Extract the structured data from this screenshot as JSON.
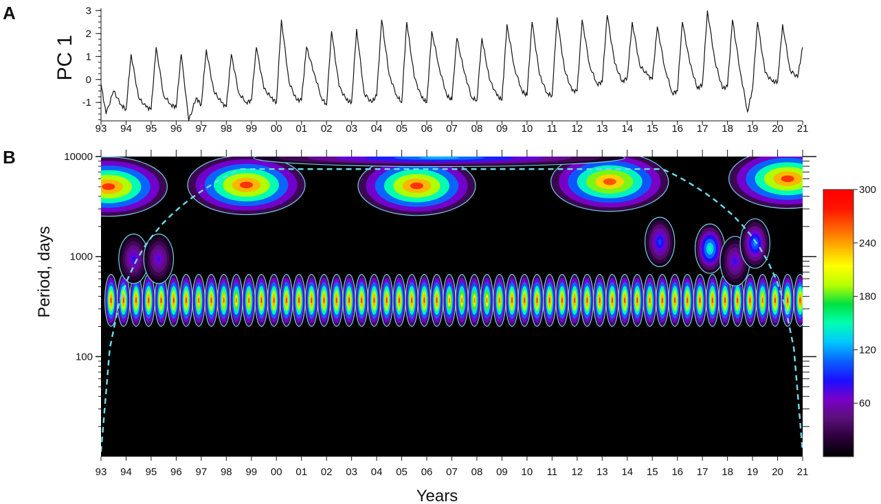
{
  "panel_a": {
    "label": "A",
    "ylabel": "PC 1",
    "yticks": [
      "3",
      "2",
      "1",
      "0",
      "-1"
    ]
  },
  "panel_b": {
    "label": "B",
    "ylabel": "Period, days",
    "xlabel": "Years",
    "yticks": [
      "10000",
      "1000",
      "100"
    ]
  },
  "year_labels": [
    "93",
    "94",
    "95",
    "96",
    "97",
    "98",
    "99",
    "00",
    "01",
    "02",
    "03",
    "04",
    "05",
    "06",
    "07",
    "08",
    "09",
    "10",
    "11",
    "12",
    "13",
    "14",
    "15",
    "16",
    "17",
    "18",
    "19",
    "20",
    "21"
  ],
  "colorbar": {
    "ticks": [
      "300",
      "240",
      "180",
      "120",
      "60"
    ],
    "colors": [
      "#000000",
      "#2a0038",
      "#5a0f78",
      "#7a00c8",
      "#1a10ff",
      "#0a60ff",
      "#00c8ff",
      "#00ffb0",
      "#00e040",
      "#b8ff00",
      "#ffff00",
      "#ffb000",
      "#ff6000",
      "#ff1400",
      "#ff0000"
    ]
  },
  "colors": {
    "contour": "#6fd8e6",
    "line": "#111111",
    "background": "#000000"
  },
  "chart_data": [
    {
      "type": "line",
      "title": "",
      "xlabel": "",
      "ylabel": "PC 1",
      "xlim": [
        1993,
        2021
      ],
      "ylim": [
        -1.8,
        3.1
      ],
      "series": [
        {
          "x": [
            1993.0,
            1993.2,
            1993.5,
            1993.8,
            1994.0,
            1994.2,
            1994.5,
            1994.8,
            1995.0,
            1995.2,
            1995.5,
            1995.8,
            1996.0,
            1996.2,
            1996.5,
            1996.8,
            1997.0,
            1997.2,
            1997.5,
            1997.8,
            1998.0,
            1998.2,
            1998.5,
            1998.8,
            1999.0,
            1999.2,
            1999.5,
            1999.8,
            2000.0,
            2000.2,
            2000.5,
            2000.8,
            2001.0,
            2001.2,
            2001.5,
            2001.8,
            2002.0,
            2002.2,
            2002.5,
            2002.8,
            2003.0,
            2003.2,
            2003.5,
            2003.8,
            2004.0,
            2004.2,
            2004.5,
            2004.8,
            2005.0,
            2005.2,
            2005.5,
            2005.8,
            2006.0,
            2006.2,
            2006.5,
            2006.8,
            2007.0,
            2007.2,
            2007.5,
            2007.8,
            2008.0,
            2008.2,
            2008.5,
            2008.8,
            2009.0,
            2009.2,
            2009.5,
            2009.8,
            2010.0,
            2010.2,
            2010.5,
            2010.8,
            2011.0,
            2011.2,
            2011.5,
            2011.8,
            2012.0,
            2012.2,
            2012.5,
            2012.8,
            2013.0,
            2013.2,
            2013.5,
            2013.8,
            2014.0,
            2014.2,
            2014.5,
            2014.8,
            2015.0,
            2015.2,
            2015.5,
            2015.8,
            2016.0,
            2016.2,
            2016.5,
            2016.8,
            2017.0,
            2017.2,
            2017.5,
            2017.8,
            2018.0,
            2018.2,
            2018.5,
            2018.8,
            2019.0,
            2019.2,
            2019.5,
            2019.8,
            2020.0,
            2020.2,
            2020.5,
            2020.8,
            2021.0
          ],
          "values": [
            -0.2,
            -1.5,
            -0.5,
            -1.1,
            -1.3,
            1.1,
            -0.8,
            -1.2,
            -1.3,
            1.4,
            -0.7,
            -1.1,
            -1.2,
            1.1,
            -1.8,
            -0.8,
            -1.1,
            1.3,
            -0.5,
            -1.0,
            -1.2,
            1.1,
            -0.6,
            -1.0,
            -0.9,
            1.4,
            -0.4,
            -0.8,
            -1.0,
            2.6,
            -0.1,
            -0.9,
            -0.9,
            1.4,
            0.3,
            -0.8,
            -1.1,
            2.1,
            -0.3,
            -0.9,
            -1.0,
            2.2,
            -0.6,
            -1.0,
            -0.7,
            2.6,
            0.2,
            -0.7,
            -1.0,
            2.5,
            0.1,
            -0.8,
            -1.0,
            2.1,
            0.5,
            -0.7,
            -0.9,
            1.8,
            0.3,
            -0.8,
            -0.9,
            1.8,
            0.0,
            -0.7,
            -0.9,
            2.4,
            0.5,
            -0.5,
            -0.7,
            2.5,
            0.2,
            -0.6,
            -0.7,
            2.7,
            0.4,
            -0.5,
            -0.5,
            2.6,
            0.6,
            -0.2,
            -0.1,
            2.8,
            0.7,
            -0.1,
            0.1,
            2.5,
            0.6,
            0.2,
            0.0,
            2.3,
            0.5,
            -0.6,
            -0.5,
            2.5,
            0.7,
            -0.4,
            -0.2,
            3.0,
            0.8,
            -0.4,
            -0.3,
            2.6,
            0.4,
            -1.4,
            -0.4,
            2.5,
            0.3,
            -0.1,
            -0.1,
            2.4,
            0.4,
            0.1,
            1.4
          ]
        }
      ]
    },
    {
      "type": "heatmap",
      "title": "",
      "xlabel": "Years",
      "ylabel": "Period, days",
      "xlim": [
        1993,
        2021
      ],
      "ylim": [
        10,
        10000
      ],
      "yscale": "log",
      "color_range": [
        0,
        300
      ],
      "colorbar_ticks": [
        60,
        120,
        180,
        240,
        300
      ],
      "annual_band": {
        "period_days": 365,
        "peak_years": [
          1993.4,
          1993.9,
          1994.4,
          1994.9,
          1995.4,
          1995.9,
          1996.4,
          1996.9,
          1997.4,
          1997.9,
          1998.4,
          1998.9,
          1999.4,
          1999.9,
          2000.4,
          2000.9,
          2001.4,
          2001.9,
          2002.4,
          2002.9,
          2003.4,
          2003.9,
          2004.4,
          2004.9,
          2005.4,
          2005.9,
          2006.4,
          2006.9,
          2007.4,
          2007.9,
          2008.4,
          2008.9,
          2009.4,
          2009.9,
          2010.4,
          2010.9,
          2011.4,
          2011.9,
          2012.4,
          2012.9,
          2013.4,
          2013.9,
          2014.4,
          2014.9,
          2015.4,
          2015.9,
          2016.4,
          2016.9,
          2017.4,
          2017.9,
          2018.4,
          2018.9,
          2019.4,
          2019.9,
          2020.4,
          2020.9
        ],
        "peak_values": [
          300,
          300,
          300,
          300,
          300,
          300,
          300,
          290,
          300,
          290,
          280,
          290,
          300,
          300,
          300,
          300,
          300,
          300,
          300,
          300,
          300,
          300,
          300,
          300,
          300,
          300,
          300,
          280,
          280,
          280,
          280,
          290,
          300,
          300,
          300,
          300,
          300,
          300,
          300,
          300,
          300,
          300,
          300,
          290,
          300,
          300,
          300,
          300,
          300,
          300,
          300,
          300,
          290,
          300,
          300,
          300
        ]
      },
      "long_period_features": [
        {
          "year": 1993.3,
          "period_days": 5000,
          "peak": 300
        },
        {
          "year": 1998.8,
          "period_days": 5200,
          "peak": 300
        },
        {
          "year": 2005.6,
          "period_days": 5100,
          "peak": 300
        },
        {
          "year": 2013.3,
          "period_days": 5600,
          "peak": 290
        },
        {
          "year": 2020.4,
          "period_days": 6000,
          "peak": 300
        },
        {
          "year": 2006.5,
          "period_days": 9700,
          "peak": 140
        }
      ],
      "mid_period_features": [
        {
          "year": 1994.3,
          "period_days": 950,
          "peak": 90
        },
        {
          "year": 1995.3,
          "period_days": 950,
          "peak": 85
        },
        {
          "year": 2015.3,
          "period_days": 1400,
          "peak": 110
        },
        {
          "year": 2017.3,
          "period_days": 1200,
          "peak": 170
        },
        {
          "year": 2018.3,
          "period_days": 900,
          "peak": 90
        },
        {
          "year": 2019.1,
          "period_days": 1350,
          "peak": 130
        }
      ]
    }
  ]
}
